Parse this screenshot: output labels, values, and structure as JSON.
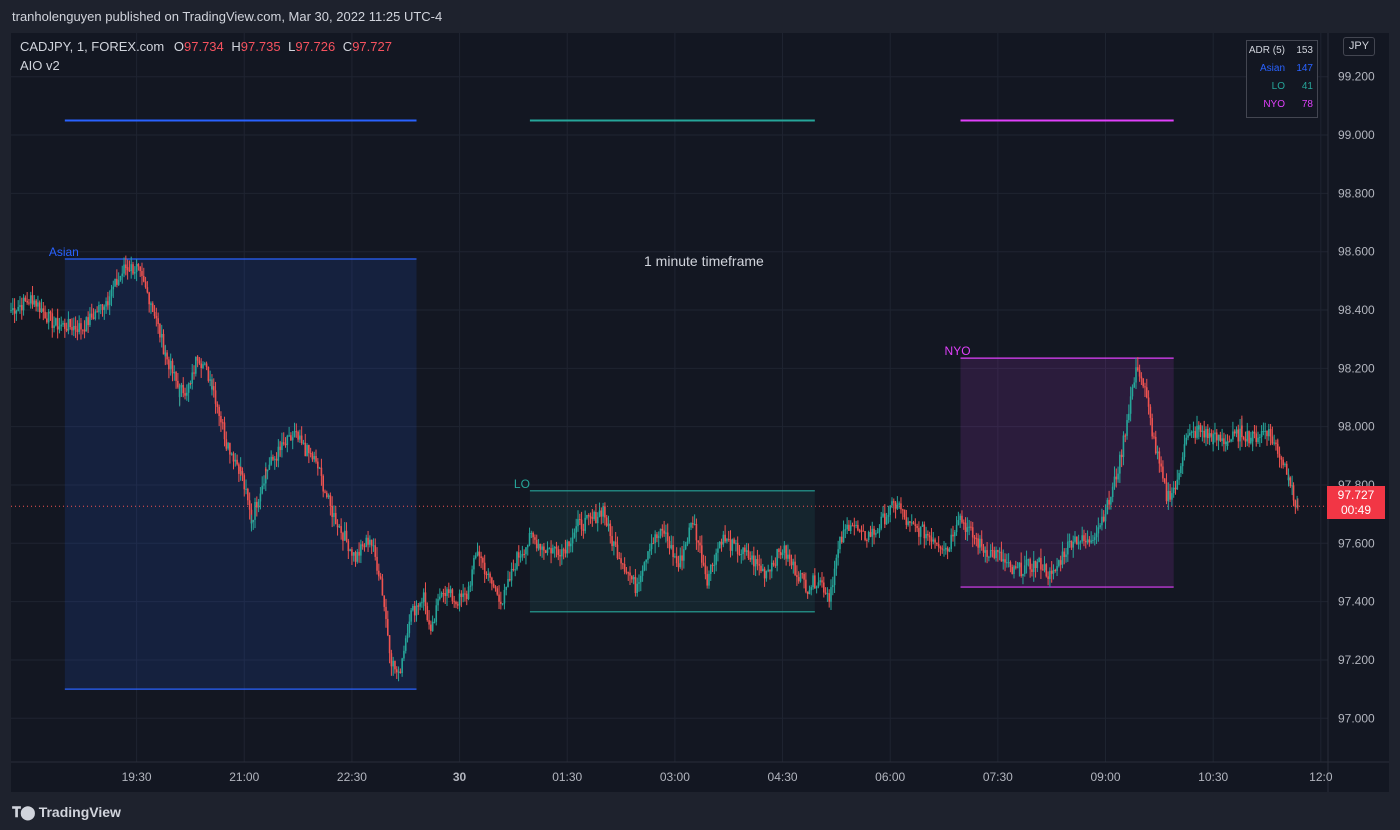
{
  "header": {
    "published_by": "tranholenguyen published on TradingView.com, Mar 30, 2022 11:25 UTC-4"
  },
  "legend": {
    "symbol": "CADJPY, 1, FOREX.com",
    "open_label": "O",
    "open": "97.734",
    "high_label": "H",
    "high": "97.735",
    "low_label": "L",
    "low": "97.726",
    "close_label": "C",
    "close": "97.727",
    "indicator": "AIO v2"
  },
  "currency": "JPY",
  "adr_table": [
    {
      "key": "ADR (5)",
      "value": "153",
      "color": "#d1d4dc"
    },
    {
      "key": "Asian",
      "value": "147",
      "color": "#2962ff"
    },
    {
      "key": "LO",
      "value": "41",
      "color": "#26a69a"
    },
    {
      "key": "NYO",
      "value": "78",
      "color": "#e040fb"
    }
  ],
  "last_price": {
    "price": "97.727",
    "countdown": "00:49",
    "color": "#f23645"
  },
  "annotation": "1 minute timeframe",
  "footer": {
    "brand": "TradingView"
  },
  "chart_data": {
    "type": "candlestick",
    "x_unit": "hours after 18:00 Mar 29 (UTC-4)",
    "y_ticks": [
      "97.000",
      "97.200",
      "97.400",
      "97.600",
      "97.800",
      "98.000",
      "98.200",
      "98.400",
      "98.600",
      "98.800",
      "99.000",
      "99.200"
    ],
    "x_ticks": [
      {
        "label": "19:30",
        "h": 1.5
      },
      {
        "label": "21:00",
        "h": 3.0
      },
      {
        "label": "22:30",
        "h": 4.5
      },
      {
        "label": "30",
        "h": 6.0,
        "bold": true
      },
      {
        "label": "01:30",
        "h": 7.5
      },
      {
        "label": "03:00",
        "h": 9.0
      },
      {
        "label": "04:30",
        "h": 10.5
      },
      {
        "label": "06:00",
        "h": 12.0
      },
      {
        "label": "07:30",
        "h": 13.5
      },
      {
        "label": "09:00",
        "h": 15.0
      },
      {
        "label": "10:30",
        "h": 16.5
      },
      {
        "label": "12:0",
        "h": 18.0
      }
    ],
    "ylim": [
      96.85,
      99.35
    ],
    "xlim": [
      -0.25,
      18.1
    ],
    "up_color": "#26a69a",
    "down_color": "#ef5350",
    "sessions": [
      {
        "name": "Asian",
        "start_h": 0.5,
        "end_h": 5.4,
        "high": 98.575,
        "low": 97.1,
        "color": "#2962ff",
        "fill": "rgba(41,98,255,0.13)",
        "adr_level": 99.05
      },
      {
        "name": "LO",
        "start_h": 6.98,
        "end_h": 10.95,
        "high": 97.78,
        "low": 97.365,
        "color": "#26a69a",
        "fill": "rgba(38,166,154,0.10)",
        "adr_level": 99.05
      },
      {
        "name": "NYO",
        "start_h": 12.98,
        "end_h": 15.95,
        "high": 98.235,
        "low": 97.45,
        "color": "#e040fb",
        "fill": "rgba(224,64,251,0.12)",
        "adr_level": 99.05
      }
    ],
    "last_price": 97.727,
    "path": [
      [
        -0.25,
        98.4
      ],
      [
        0.05,
        98.44
      ],
      [
        0.35,
        98.35
      ],
      [
        0.75,
        98.34
      ],
      [
        1.1,
        98.44
      ],
      [
        1.35,
        98.55
      ],
      [
        1.5,
        98.54
      ],
      [
        1.7,
        98.43
      ],
      [
        1.9,
        98.25
      ],
      [
        2.1,
        98.12
      ],
      [
        2.25,
        98.14
      ],
      [
        2.35,
        98.25
      ],
      [
        2.55,
        98.15
      ],
      [
        2.75,
        97.95
      ],
      [
        2.95,
        97.85
      ],
      [
        3.1,
        97.68
      ],
      [
        3.3,
        97.85
      ],
      [
        3.5,
        97.92
      ],
      [
        3.7,
        97.97
      ],
      [
        3.85,
        97.92
      ],
      [
        4.0,
        97.88
      ],
      [
        4.2,
        97.72
      ],
      [
        4.4,
        97.62
      ],
      [
        4.55,
        97.55
      ],
      [
        4.75,
        97.62
      ],
      [
        4.9,
        97.48
      ],
      [
        5.05,
        97.2
      ],
      [
        5.15,
        97.14
      ],
      [
        5.3,
        97.35
      ],
      [
        5.5,
        97.42
      ],
      [
        5.6,
        97.28
      ],
      [
        5.75,
        97.45
      ],
      [
        5.95,
        97.4
      ],
      [
        6.1,
        97.42
      ],
      [
        6.25,
        97.58
      ],
      [
        6.4,
        97.48
      ],
      [
        6.6,
        97.4
      ],
      [
        6.8,
        97.55
      ],
      [
        7.0,
        97.62
      ],
      [
        7.2,
        97.58
      ],
      [
        7.45,
        97.58
      ],
      [
        7.65,
        97.66
      ],
      [
        7.85,
        97.68
      ],
      [
        8.0,
        97.72
      ],
      [
        8.1,
        97.62
      ],
      [
        8.25,
        97.55
      ],
      [
        8.45,
        97.45
      ],
      [
        8.65,
        97.6
      ],
      [
        8.85,
        97.64
      ],
      [
        9.05,
        97.52
      ],
      [
        9.25,
        97.68
      ],
      [
        9.45,
        97.48
      ],
      [
        9.65,
        97.62
      ],
      [
        9.85,
        97.58
      ],
      [
        10.05,
        97.55
      ],
      [
        10.25,
        97.5
      ],
      [
        10.5,
        97.58
      ],
      [
        10.65,
        97.52
      ],
      [
        10.85,
        97.45
      ],
      [
        11.0,
        97.48
      ],
      [
        11.15,
        97.42
      ],
      [
        11.3,
        97.6
      ],
      [
        11.45,
        97.68
      ],
      [
        11.6,
        97.62
      ],
      [
        11.8,
        97.64
      ],
      [
        11.95,
        97.7
      ],
      [
        12.1,
        97.74
      ],
      [
        12.25,
        97.66
      ],
      [
        12.45,
        97.64
      ],
      [
        12.6,
        97.62
      ],
      [
        12.8,
        97.58
      ],
      [
        12.95,
        97.7
      ],
      [
        13.1,
        97.64
      ],
      [
        13.3,
        97.58
      ],
      [
        13.5,
        97.56
      ],
      [
        13.7,
        97.5
      ],
      [
        13.9,
        97.52
      ],
      [
        14.1,
        97.53
      ],
      [
        14.25,
        97.48
      ],
      [
        14.4,
        97.56
      ],
      [
        14.55,
        97.62
      ],
      [
        14.75,
        97.6
      ],
      [
        14.9,
        97.66
      ],
      [
        15.05,
        97.74
      ],
      [
        15.2,
        97.88
      ],
      [
        15.35,
        98.1
      ],
      [
        15.45,
        98.21
      ],
      [
        15.55,
        98.12
      ],
      [
        15.7,
        97.92
      ],
      [
        15.85,
        97.76
      ],
      [
        16.0,
        97.8
      ],
      [
        16.1,
        97.95
      ],
      [
        16.3,
        97.99
      ],
      [
        16.5,
        97.96
      ],
      [
        16.7,
        97.95
      ],
      [
        16.9,
        97.98
      ],
      [
        17.05,
        97.96
      ],
      [
        17.25,
        97.99
      ],
      [
        17.4,
        97.92
      ],
      [
        17.55,
        97.84
      ],
      [
        17.62,
        97.75
      ],
      [
        17.68,
        97.727
      ]
    ]
  }
}
